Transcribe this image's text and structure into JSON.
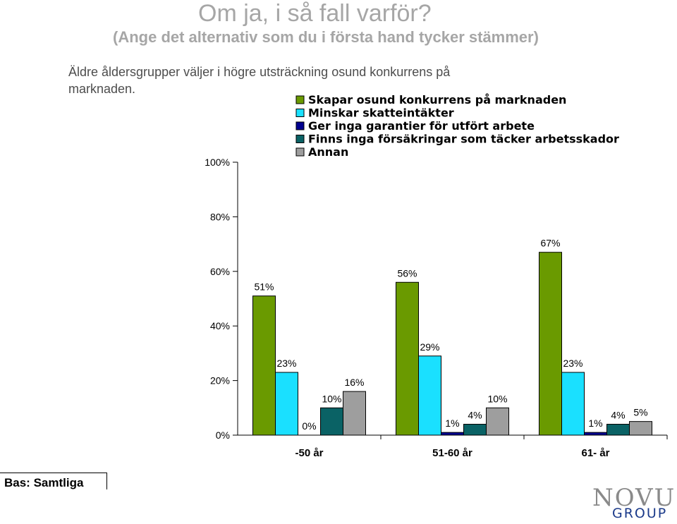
{
  "header": {
    "title": "Om ja, i så fall varför?",
    "subtitle": "(Ange det alternativ som du i första hand tycker stämmer)",
    "description": "Äldre åldersgrupper väljer i högre utsträckning osund konkurrens på marknaden."
  },
  "footer": {
    "base_label": "Bas: Samtliga",
    "logo_word": "NOVUS",
    "logo_sub": "GROUP"
  },
  "chart_data": {
    "type": "bar",
    "categories": [
      "-50 år",
      "51-60 år",
      "61- år"
    ],
    "series": [
      {
        "name": "Skapar osund konkurrens på marknaden",
        "color": "#6a9a00",
        "values": [
          51,
          56,
          67
        ],
        "labels": [
          "51%",
          "56%",
          "67%"
        ]
      },
      {
        "name": "Minskar skatteintäkter",
        "color": "#1ae0ff",
        "values": [
          23,
          29,
          23
        ],
        "labels": [
          "23%",
          "29%",
          "23%"
        ]
      },
      {
        "name": "Ger inga garantier för utfört arbete",
        "color": "#00008f",
        "values": [
          0,
          1,
          1
        ],
        "labels": [
          "0%",
          "1%",
          "1%"
        ]
      },
      {
        "name": "Finns inga försäkringar som täcker arbetsskador",
        "color": "#0a6265",
        "values": [
          10,
          4,
          4
        ],
        "labels": [
          "10%",
          "4%",
          "4%"
        ]
      },
      {
        "name": "Annan",
        "color": "#9e9e9e",
        "values": [
          16,
          10,
          5
        ],
        "labels": [
          "16%",
          "10%",
          "5%"
        ]
      }
    ],
    "ylim": [
      0,
      100
    ],
    "yticks": [
      "0%",
      "20%",
      "40%",
      "60%",
      "80%",
      "100%"
    ],
    "grid": false,
    "legend": "top"
  }
}
